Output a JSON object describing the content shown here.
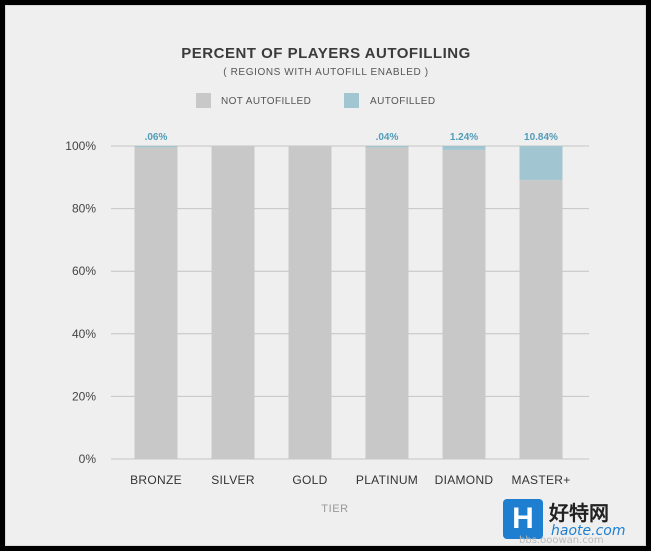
{
  "chart_data": {
    "type": "bar",
    "title": "PERCENT OF PLAYERS AUTOFILLING",
    "subtitle": "( REGIONS WITH AUTOFILL ENABLED )",
    "xlabel": "TIER",
    "ylabel": "",
    "ylim": [
      0,
      100
    ],
    "yticks": [
      "0%",
      "20%",
      "40%",
      "60%",
      "80%",
      "100%"
    ],
    "categories": [
      "BRONZE",
      "SILVER",
      "GOLD",
      "PLATINUM",
      "DIAMOND",
      "MASTER+"
    ],
    "stacked": true,
    "legend_position": "top-center",
    "series": [
      {
        "name": "NOT AUTOFILLED",
        "color": "#c8c8c8",
        "values": [
          99.94,
          100,
          100,
          99.96,
          98.76,
          89.16
        ]
      },
      {
        "name": "AUTOFILLED",
        "color": "#a1c6d1",
        "values": [
          0.06,
          0,
          0,
          0.04,
          1.24,
          10.84
        ]
      }
    ],
    "data_labels": [
      ".06%",
      "",
      "",
      ".04%",
      "1.24%",
      "10.84%"
    ],
    "grid": true
  },
  "watermark": {
    "logo_text": "H",
    "cn": "好特网",
    "en": "haote.com",
    "url": "bbs.ooowan.com"
  }
}
